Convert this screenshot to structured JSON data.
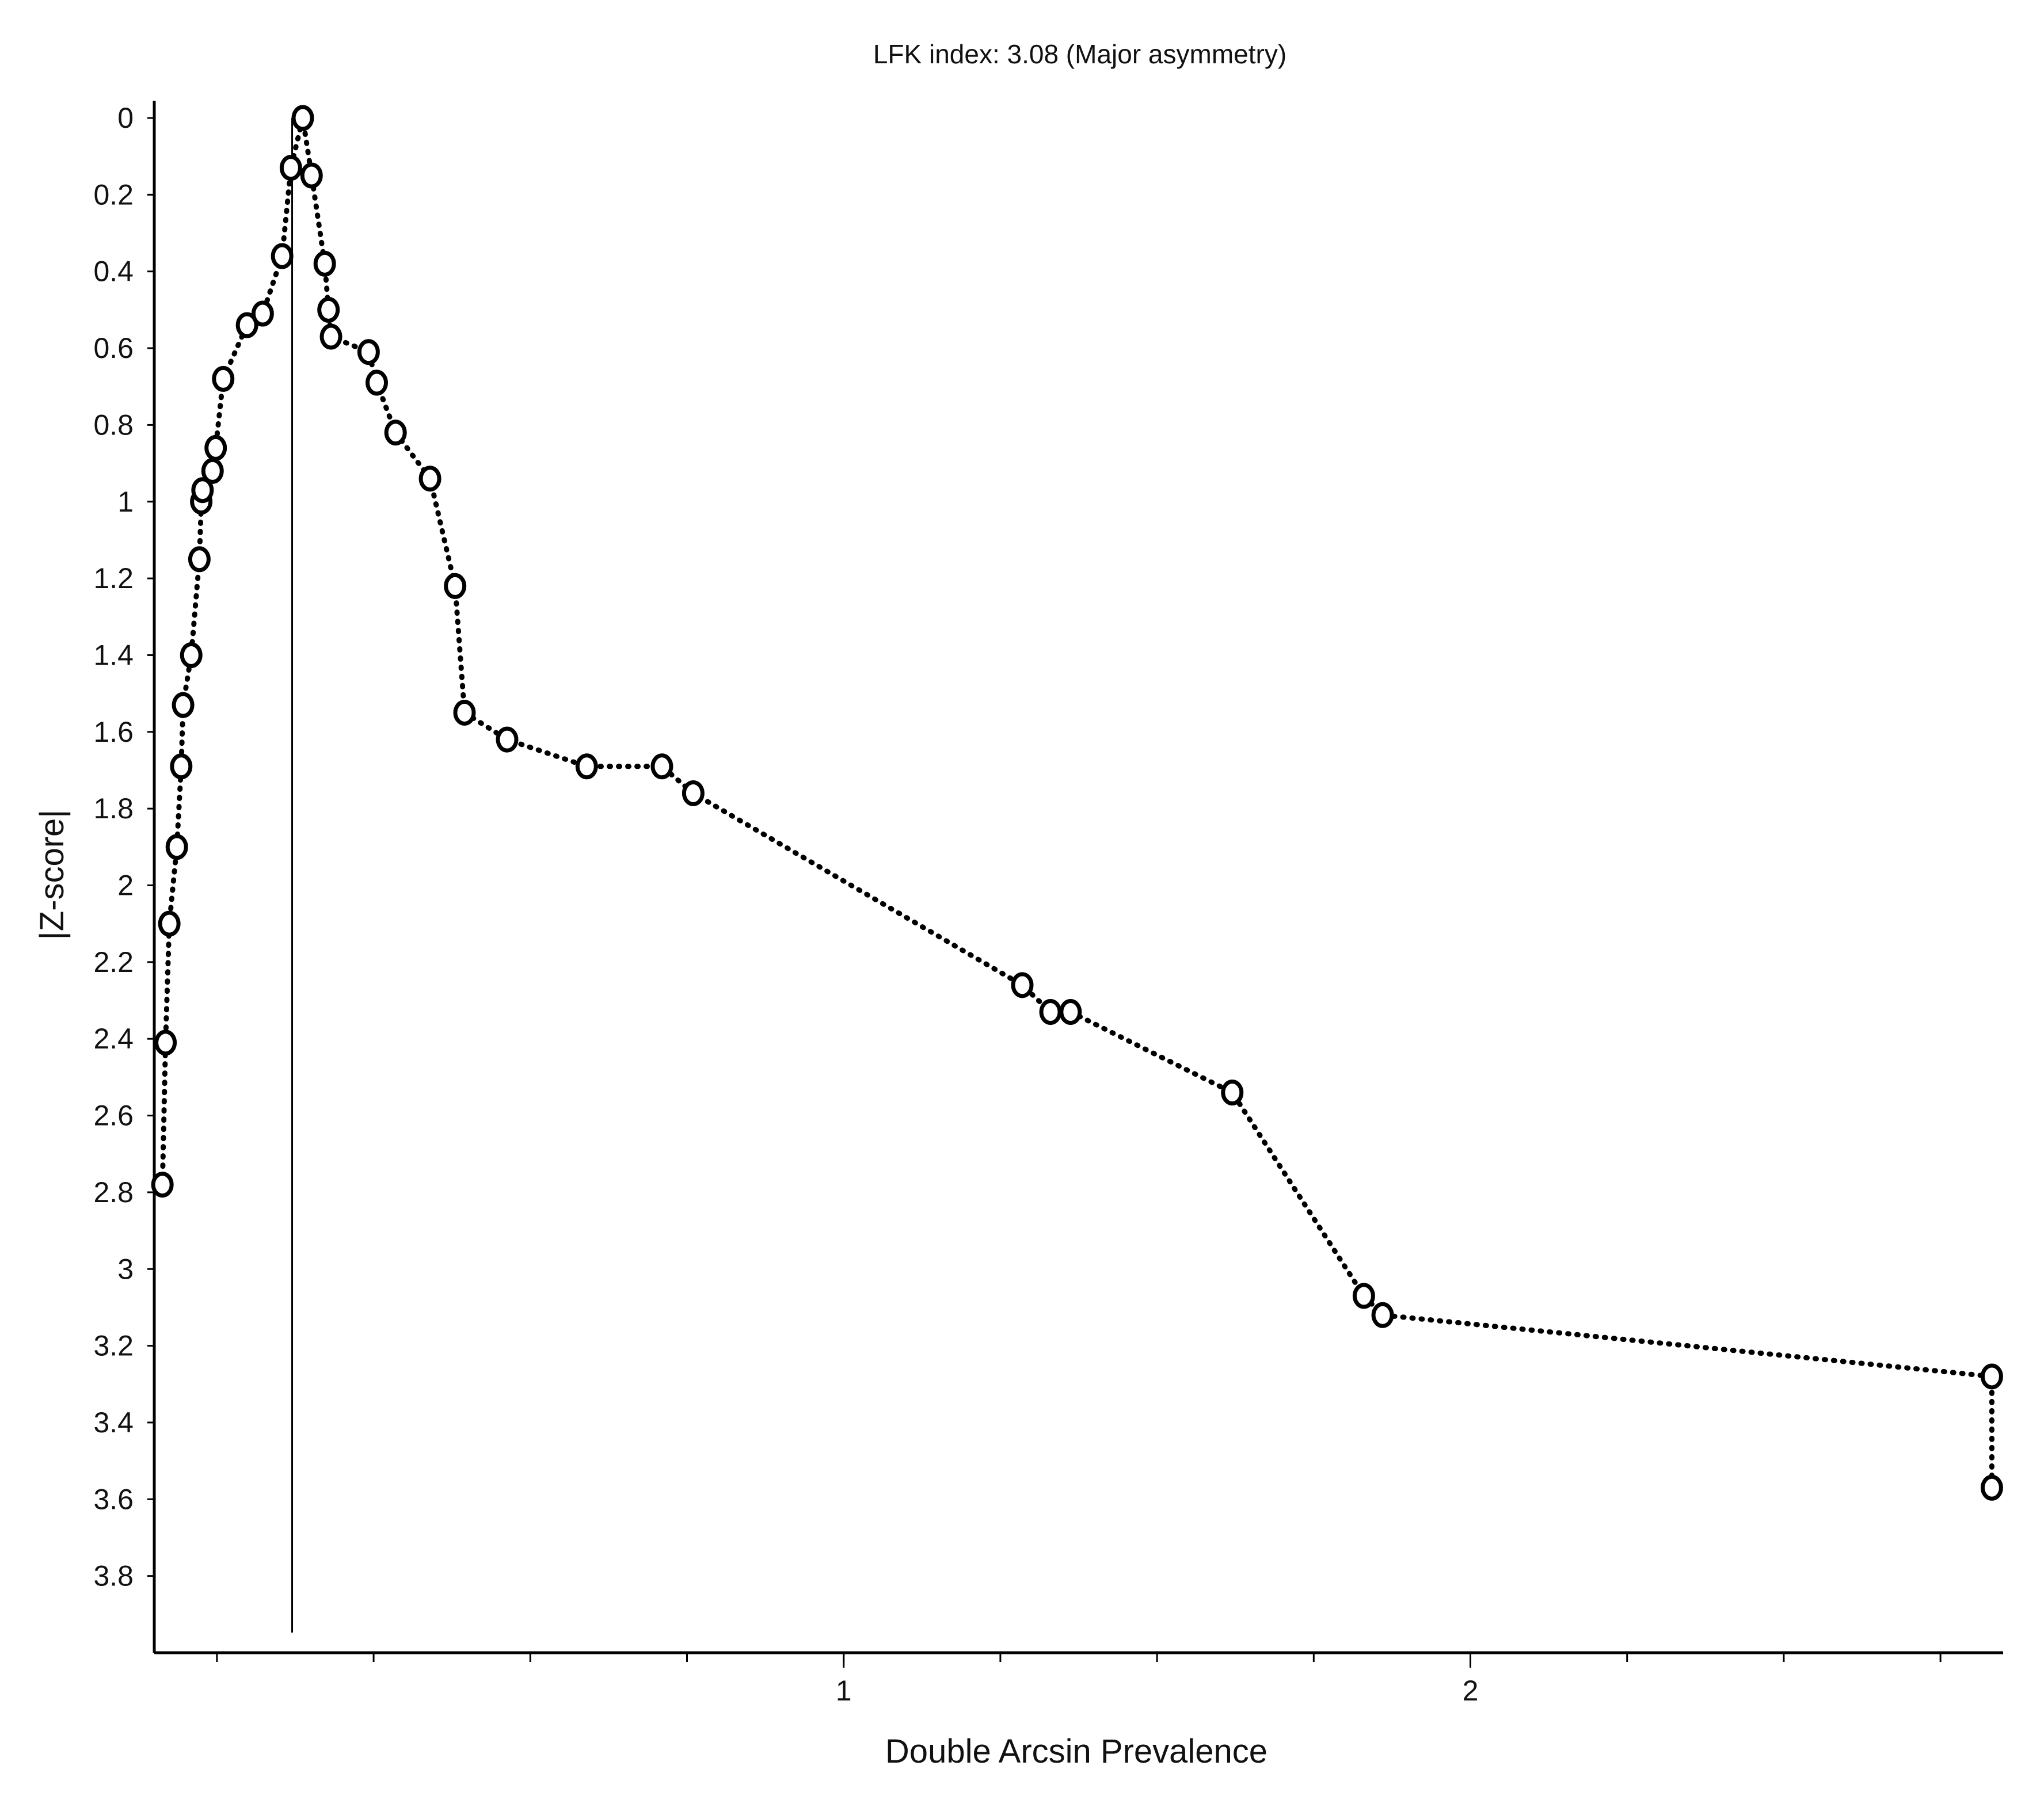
{
  "chart_data": {
    "type": "line",
    "title": "LFK index: 3.08 (Major asymmetry)",
    "xlabel": "Double Arcsin Prevalence",
    "ylabel": "|Z-score|",
    "y_axis_reversed": true,
    "xlim": [
      -0.1,
      2.85
    ],
    "ylim": [
      0,
      4.0
    ],
    "x_ticks": [
      1,
      2
    ],
    "x_tick_labels": [
      "1",
      "2"
    ],
    "y_ticks": [
      0,
      0.2,
      0.4,
      0.6,
      0.8,
      1,
      1.2,
      1.4,
      1.6,
      1.8,
      2,
      2.2,
      2.4,
      2.6,
      2.8,
      3,
      3.2,
      3.4,
      3.6,
      3.8
    ],
    "y_tick_labels": [
      "0",
      "0.2",
      "0.4",
      "0.6",
      "0.8",
      "1",
      "1.2",
      "1.4",
      "1.6",
      "1.8",
      "2",
      "2.2",
      "2.4",
      "2.6",
      "2.8",
      "3",
      "3.2",
      "3.4",
      "3.6",
      "3.8"
    ],
    "reference_line_x": 0.12,
    "grid": false,
    "legend": "none",
    "marker": "open-circle",
    "line_style": "dotted",
    "series": [
      {
        "x": [
          -0.087,
          -0.082,
          -0.076,
          -0.064,
          -0.057,
          -0.054,
          -0.041,
          -0.028,
          -0.025,
          -0.023,
          -0.007,
          -0.002,
          0.01,
          0.048,
          0.073,
          0.104,
          0.118,
          0.137,
          0.151,
          0.172,
          0.178,
          0.182,
          0.242,
          0.255,
          0.285,
          0.34,
          0.38,
          0.395,
          0.463,
          0.59,
          0.71,
          0.76,
          1.285,
          1.33,
          1.362,
          1.62,
          1.83,
          1.86,
          2.832,
          2.832
        ],
        "y": [
          2.78,
          2.41,
          2.1,
          1.9,
          1.69,
          1.53,
          1.4,
          1.15,
          1.0,
          0.97,
          0.92,
          0.86,
          0.68,
          0.54,
          0.51,
          0.36,
          0.13,
          0.0,
          0.15,
          0.38,
          0.5,
          0.57,
          0.61,
          0.69,
          0.82,
          0.94,
          1.22,
          1.55,
          1.62,
          1.69,
          1.69,
          1.76,
          2.26,
          2.33,
          2.33,
          2.54,
          3.07,
          3.12,
          3.28,
          3.57
        ]
      }
    ]
  }
}
